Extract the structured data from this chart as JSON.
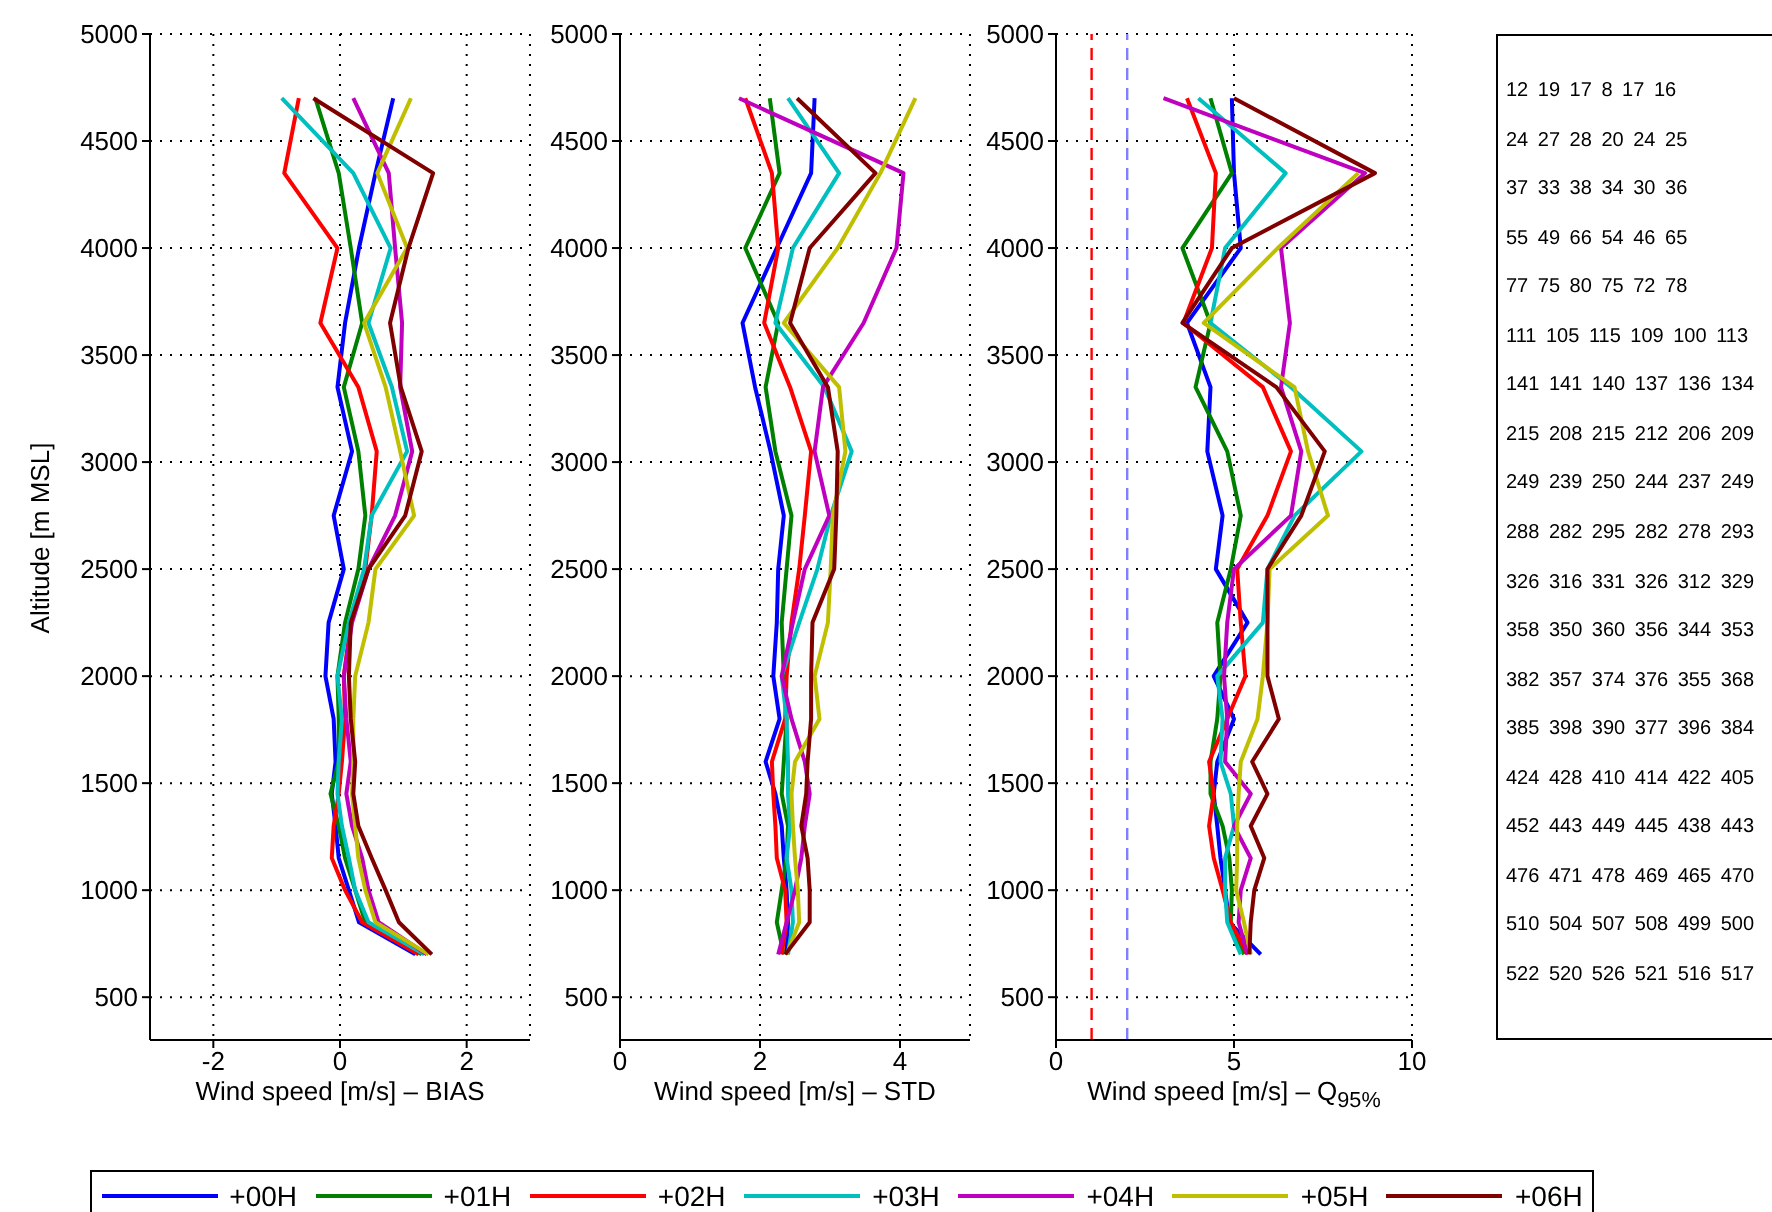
{
  "chart_data": [
    {
      "type": "line",
      "ylabel": "Altitude [m MSL]",
      "xlabel": "Wind speed [m/s] – BIAS",
      "xlim": [
        -3,
        3
      ],
      "xticks": [
        -2,
        0,
        2
      ],
      "ylim": [
        300,
        5000
      ],
      "yticks": [
        500,
        1000,
        1500,
        2000,
        2500,
        3000,
        3500,
        4000,
        4500,
        5000
      ],
      "grid": true,
      "legend": "bottom",
      "series": [
        {
          "name": "+00H",
          "color": "#0000ff",
          "x": [
            0.84,
            0.56,
            0.3,
            0.08,
            -0.04,
            0.19,
            -0.1,
            0.06,
            -0.18,
            -0.23,
            -0.1,
            -0.07,
            -0.13,
            -0.07,
            -0.02,
            0.14,
            0.3,
            1.19
          ],
          "values": [
            4700,
            4350,
            4000,
            3650,
            3350,
            3050,
            2750,
            2500,
            2250,
            2000,
            1800,
            1600,
            1450,
            1300,
            1150,
            1000,
            850,
            700
          ]
        },
        {
          "name": "+01H",
          "color": "#008000",
          "x": [
            -0.39,
            -0.02,
            0.17,
            0.35,
            0.06,
            0.29,
            0.4,
            0.29,
            0.08,
            -0.04,
            -0.02,
            -0.02,
            -0.15,
            -0.02,
            0.08,
            0.24,
            0.4,
            1.29
          ],
          "values": [
            4700,
            4350,
            4000,
            3650,
            3350,
            3050,
            2750,
            2500,
            2250,
            2000,
            1800,
            1600,
            1450,
            1300,
            1150,
            1000,
            850,
            700
          ]
        },
        {
          "name": "+02H",
          "color": "#ff0000",
          "x": [
            -0.65,
            -0.88,
            -0.04,
            -0.31,
            0.29,
            0.58,
            0.5,
            0.4,
            0.17,
            0.06,
            0.08,
            0.03,
            -0.02,
            -0.1,
            -0.13,
            0.08,
            0.35,
            1.24
          ],
          "values": [
            4700,
            4350,
            4000,
            3650,
            3350,
            3050,
            2750,
            2500,
            2250,
            2000,
            1800,
            1600,
            1450,
            1300,
            1150,
            1000,
            850,
            700
          ]
        },
        {
          "name": "+03H",
          "color": "#00bfbf",
          "x": [
            -0.92,
            0.21,
            0.8,
            0.45,
            0.82,
            1.06,
            0.5,
            0.38,
            0.14,
            -0.04,
            0.03,
            -0.02,
            -0.04,
            0.03,
            0.14,
            0.24,
            0.45,
            1.33
          ],
          "values": [
            4700,
            4350,
            4000,
            3650,
            3350,
            3050,
            2750,
            2500,
            2250,
            2000,
            1800,
            1600,
            1450,
            1300,
            1150,
            1000,
            850,
            700
          ]
        },
        {
          "name": "+04H",
          "color": "#bf00bf",
          "x": [
            0.21,
            0.77,
            0.87,
            0.98,
            0.95,
            1.14,
            0.87,
            0.45,
            0.19,
            0.06,
            0.1,
            0.17,
            0.1,
            0.19,
            0.35,
            0.45,
            0.61,
            1.37
          ],
          "values": [
            4700,
            4350,
            4000,
            3650,
            3350,
            3050,
            2750,
            2500,
            2250,
            2000,
            1800,
            1600,
            1450,
            1300,
            1150,
            1000,
            850,
            700
          ]
        },
        {
          "name": "+05H",
          "color": "#bfbf00",
          "x": [
            1.12,
            0.59,
            1.06,
            0.38,
            0.72,
            0.95,
            1.17,
            0.56,
            0.45,
            0.24,
            0.21,
            0.21,
            0.19,
            0.24,
            0.29,
            0.4,
            0.56,
            1.4
          ],
          "values": [
            4700,
            4350,
            4000,
            3650,
            3350,
            3050,
            2750,
            2500,
            2250,
            2000,
            1800,
            1600,
            1450,
            1300,
            1150,
            1000,
            850,
            700
          ]
        },
        {
          "name": "+06H",
          "color": "#800000",
          "x": [
            -0.42,
            1.47,
            1.08,
            0.79,
            0.96,
            1.29,
            1.03,
            0.45,
            0.17,
            0.14,
            0.17,
            0.24,
            0.21,
            0.29,
            0.5,
            0.72,
            0.93,
            1.45
          ],
          "values": [
            4700,
            4350,
            4000,
            3650,
            3350,
            3050,
            2750,
            2500,
            2250,
            2000,
            1800,
            1600,
            1450,
            1300,
            1150,
            1000,
            850,
            700
          ]
        }
      ]
    },
    {
      "type": "line",
      "xlabel": "Wind speed [m/s] – STD",
      "xlim": [
        0,
        5
      ],
      "xticks": [
        0,
        2,
        4
      ],
      "ylim": [
        300,
        5000
      ],
      "yticks": [
        500,
        1000,
        1500,
        2000,
        2500,
        3000,
        3500,
        4000,
        4500,
        5000
      ],
      "grid": true,
      "series": [
        {
          "color": "#0000ff",
          "x": [
            2.78,
            2.73,
            2.24,
            1.75,
            1.93,
            2.15,
            2.34,
            2.26,
            2.24,
            2.19,
            2.28,
            2.08,
            2.22,
            2.31,
            2.34,
            2.38,
            2.4,
            2.38
          ],
          "values": [
            4700,
            4350,
            4000,
            3650,
            3350,
            3050,
            2750,
            2500,
            2250,
            2000,
            1800,
            1600,
            1450,
            1300,
            1150,
            1000,
            850,
            700
          ]
        },
        {
          "color": "#008000",
          "x": [
            2.14,
            2.28,
            1.79,
            2.26,
            2.08,
            2.22,
            2.45,
            2.38,
            2.31,
            2.34,
            2.38,
            2.34,
            2.31,
            2.4,
            2.38,
            2.31,
            2.24,
            2.34
          ],
          "values": [
            4700,
            4350,
            4000,
            3650,
            3350,
            3050,
            2750,
            2500,
            2250,
            2000,
            1800,
            1600,
            1450,
            1300,
            1150,
            1000,
            850,
            700
          ]
        },
        {
          "color": "#ff0000",
          "x": [
            1.79,
            2.17,
            2.26,
            2.06,
            2.43,
            2.73,
            2.64,
            2.56,
            2.45,
            2.38,
            2.36,
            2.17,
            2.19,
            2.22,
            2.24,
            2.36,
            2.38,
            2.31
          ],
          "values": [
            4700,
            4350,
            4000,
            3650,
            3350,
            3050,
            2750,
            2500,
            2250,
            2000,
            1800,
            1600,
            1450,
            1300,
            1150,
            1000,
            850,
            700
          ]
        },
        {
          "color": "#00bfbf",
          "x": [
            2.4,
            3.13,
            2.47,
            2.22,
            2.92,
            3.31,
            3.01,
            2.82,
            2.56,
            2.31,
            2.38,
            2.4,
            2.4,
            2.43,
            2.38,
            2.45,
            2.47,
            2.4
          ],
          "values": [
            4700,
            4350,
            4000,
            3650,
            3350,
            3050,
            2750,
            2500,
            2250,
            2000,
            1800,
            1600,
            1450,
            1300,
            1150,
            1000,
            850,
            700
          ]
        },
        {
          "color": "#bf00bf",
          "x": [
            1.7,
            4.05,
            3.95,
            3.48,
            2.9,
            2.78,
            2.99,
            2.64,
            2.47,
            2.31,
            2.45,
            2.64,
            2.71,
            2.64,
            2.59,
            2.5,
            2.38,
            2.26
          ],
          "values": [
            4700,
            4350,
            4000,
            3650,
            3350,
            3050,
            2750,
            2500,
            2250,
            2000,
            1800,
            1600,
            1450,
            1300,
            1150,
            1000,
            850,
            700
          ]
        },
        {
          "color": "#bfbf00",
          "x": [
            4.22,
            3.72,
            3.11,
            2.34,
            3.13,
            3.22,
            3.04,
            3.01,
            2.97,
            2.78,
            2.85,
            2.5,
            2.45,
            2.47,
            2.5,
            2.54,
            2.56,
            2.38
          ],
          "values": [
            4700,
            4350,
            4000,
            3650,
            3350,
            3050,
            2750,
            2500,
            2250,
            2000,
            1800,
            1600,
            1450,
            1300,
            1150,
            1000,
            850,
            700
          ]
        },
        {
          "color": "#800000",
          "x": [
            2.53,
            3.65,
            2.71,
            2.43,
            2.97,
            3.11,
            3.09,
            3.06,
            2.75,
            2.73,
            2.73,
            2.68,
            2.66,
            2.59,
            2.68,
            2.71,
            2.71,
            2.36
          ],
          "values": [
            4700,
            4350,
            4000,
            3650,
            3350,
            3050,
            2750,
            2500,
            2250,
            2000,
            1800,
            1600,
            1450,
            1300,
            1150,
            1000,
            850,
            700
          ]
        }
      ]
    },
    {
      "type": "line",
      "xlabel": "Wind speed [m/s] – Q$_{95%}$",
      "xlim": [
        0,
        10
      ],
      "xticks": [
        0,
        5,
        10
      ],
      "ylim": [
        300,
        5000
      ],
      "yticks": [
        500,
        1000,
        1500,
        2000,
        2500,
        3000,
        3500,
        4000,
        4500,
        5000
      ],
      "grid": true,
      "ref_lines": [
        {
          "axis": "x",
          "value": 1,
          "color": "#ff0000",
          "line_style": "dashed"
        },
        {
          "axis": "x",
          "value": 2,
          "color": "#8080ff",
          "line_style": "dashed"
        }
      ],
      "series": [
        {
          "color": "#0000ff",
          "x": [
            4.94,
            5.0,
            5.19,
            3.68,
            4.34,
            4.25,
            4.68,
            4.49,
            5.38,
            4.43,
            5.0,
            4.53,
            4.43,
            4.53,
            4.62,
            4.75,
            4.87,
            5.75
          ],
          "values": [
            4700,
            4350,
            4000,
            3650,
            3350,
            3050,
            2750,
            2500,
            2250,
            2000,
            1800,
            1600,
            1450,
            1300,
            1150,
            1000,
            850,
            700
          ]
        },
        {
          "color": "#008000",
          "x": [
            4.34,
            4.94,
            3.55,
            4.34,
            3.92,
            4.81,
            5.19,
            4.91,
            4.53,
            4.62,
            4.53,
            4.34,
            4.34,
            4.68,
            4.87,
            4.94,
            4.91,
            5.28
          ],
          "values": [
            4700,
            4350,
            4000,
            3650,
            3350,
            3050,
            2750,
            2500,
            2250,
            2000,
            1800,
            1600,
            1450,
            1300,
            1150,
            1000,
            850,
            700
          ]
        },
        {
          "color": "#ff0000",
          "x": [
            3.68,
            4.49,
            4.38,
            3.58,
            5.81,
            6.6,
            5.94,
            5.09,
            5.19,
            5.32,
            4.81,
            4.3,
            4.43,
            4.3,
            4.43,
            4.68,
            4.91,
            5.38
          ],
          "values": [
            4700,
            4350,
            4000,
            3650,
            3350,
            3050,
            2750,
            2500,
            2250,
            2000,
            1800,
            1600,
            1450,
            1300,
            1150,
            1000,
            850,
            700
          ]
        },
        {
          "color": "#00bfbf",
          "x": [
            4.0,
            6.45,
            4.75,
            4.34,
            6.6,
            8.58,
            6.7,
            5.94,
            5.81,
            4.53,
            4.68,
            4.62,
            4.91,
            5.0,
            4.75,
            4.75,
            4.81,
            5.19
          ],
          "values": [
            4700,
            4350,
            4000,
            3650,
            3350,
            3050,
            2750,
            2500,
            2250,
            2000,
            1800,
            1600,
            1450,
            1300,
            1150,
            1000,
            850,
            700
          ]
        },
        {
          "color": "#bf00bf",
          "x": [
            3.02,
            8.68,
            6.32,
            6.57,
            6.32,
            6.89,
            6.6,
            5.0,
            4.81,
            4.72,
            4.81,
            4.75,
            5.47,
            5.0,
            5.47,
            5.19,
            5.13,
            5.38
          ],
          "values": [
            4700,
            4350,
            4000,
            3650,
            3350,
            3050,
            2750,
            2500,
            2250,
            2000,
            1800,
            1600,
            1450,
            1300,
            1150,
            1000,
            850,
            700
          ]
        },
        {
          "color": "#bfbf00",
          "x": [
            null,
            8.49,
            6.23,
            4.15,
            6.7,
            7.08,
            7.64,
            6.0,
            5.94,
            5.81,
            5.66,
            5.19,
            5.13,
            5.09,
            5.09,
            5.06,
            5.28,
            5.47
          ],
          "values": [
            null,
            4350,
            4000,
            3650,
            3350,
            3050,
            2750,
            2500,
            2250,
            2000,
            1800,
            1600,
            1450,
            1300,
            1150,
            1000,
            850,
            700
          ]
        },
        {
          "color": "#800000",
          "x": [
            5.0,
            8.96,
            4.94,
            3.55,
            6.19,
            7.55,
            6.89,
            5.94,
            5.94,
            5.94,
            6.26,
            5.51,
            5.94,
            5.47,
            5.85,
            5.57,
            5.47,
            5.43
          ],
          "values": [
            4700,
            4350,
            4000,
            3650,
            3350,
            3050,
            2750,
            2500,
            2250,
            2000,
            1800,
            1600,
            1450,
            1300,
            1150,
            1000,
            850,
            700
          ]
        }
      ]
    },
    {
      "type": "other",
      "annotations": [
        "12 19 17 8 17 16",
        "24 27 28 20 24 25",
        "37 33 38 34 30 36",
        "55 49 66 54 46 65",
        "77 75 80 75 72 78",
        "111 105 115 109 100 113",
        "141 141 140 137 136 134",
        "215 208 215 212 206 209",
        "249 239 250 244 237 249",
        "288 282 295 282 278 293",
        "326 316 331 326 312 329",
        "358 350 360 356 344 353",
        "382 357 374 376 355 368",
        "385 398 390 377 396 384",
        "424 428 410 414 422 405",
        "452 443 449 445 438 443",
        "476 471 478 469 465 470",
        "510 504 507 508 499 500",
        "522 520 526 521 516 517"
      ]
    }
  ]
}
